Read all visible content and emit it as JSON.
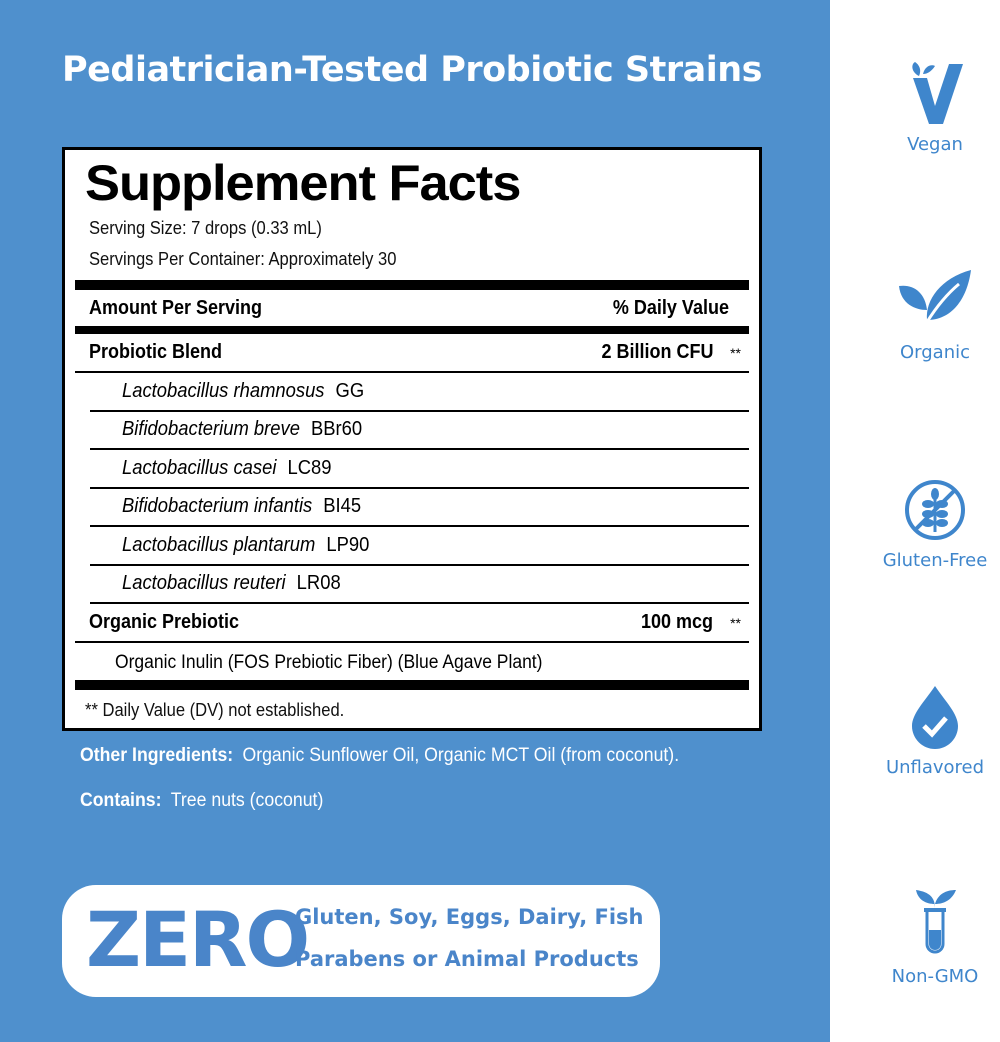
{
  "title": "Pediatrician-Tested Probiotic Strains",
  "facts": {
    "heading": "Supplement Facts",
    "serving_size": "Serving Size: 7 drops (0.33 mL)",
    "servings_per_container": "Servings Per Container: Approximately 30",
    "col_amount": "Amount Per Serving",
    "col_dv": "% Daily Value",
    "blend": {
      "name": "Probiotic Blend",
      "amount": "2 Billion CFU",
      "dv": "**"
    },
    "strains": [
      {
        "species": "Lactobacillus rhamnosus",
        "code": "GG"
      },
      {
        "species": "Bifidobacterium breve",
        "code": "BBr60"
      },
      {
        "species": "Lactobacillus casei",
        "code": "LC89"
      },
      {
        "species": "Bifidobacterium infantis",
        "code": "BI45"
      },
      {
        "species": "Lactobacillus plantarum",
        "code": "LP90"
      },
      {
        "species": "Lactobacillus reuteri",
        "code": "LR08"
      }
    ],
    "prebiotic": {
      "name": "Organic Prebiotic",
      "amount": "100 mcg",
      "dv": "**",
      "detail": "Organic Inulin (FOS Prebiotic Fiber) (Blue Agave Plant)"
    },
    "footnote": "** Daily Value (DV) not established."
  },
  "other_ingredients": {
    "label": "Other Ingredients:",
    "value": "Organic Sunflower Oil, Organic MCT Oil (from coconut)."
  },
  "contains": {
    "label": "Contains:",
    "value": "Tree nuts (coconut)"
  },
  "zero": {
    "big": "ZERO",
    "line1": "Gluten, Soy, Eggs, Dairy, Fish",
    "line2": "Parabens or Animal Products"
  },
  "badges": [
    {
      "label": "Vegan",
      "icon": "vegan-v-icon"
    },
    {
      "label": "Organic",
      "icon": "leaf-icon"
    },
    {
      "label": "Gluten-Free",
      "icon": "no-wheat-icon"
    },
    {
      "label": "Unflavored",
      "icon": "drop-check-icon"
    },
    {
      "label": "Non-GMO",
      "icon": "test-tube-sprout-icon"
    }
  ],
  "colors": {
    "background": "#4f90cd",
    "accent": "#3f86cc"
  }
}
